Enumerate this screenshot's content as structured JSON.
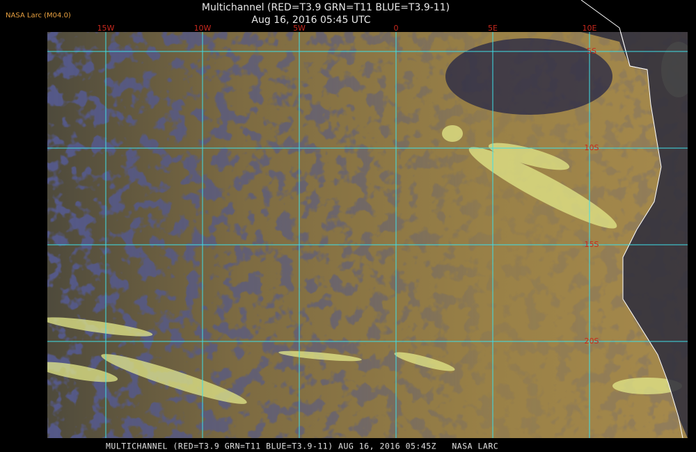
{
  "header": {
    "source": "NASA Larc (M04.0)",
    "title": "Multichannel (RED=T3.9 GRN=T11 BLUE=T3.9-11)",
    "subtitle": "Aug 16, 2016 05:45 UTC"
  },
  "map": {
    "longitude_labels": [
      "15W",
      "10W",
      "5W",
      "0",
      "5E",
      "10E"
    ],
    "latitude_labels": [
      "5S",
      "10S",
      "15S",
      "20S"
    ]
  },
  "footer": {
    "caption": "MULTICHANNEL (RED=T3.9 GRN=T11 BLUE=T3.9-11) AUG 16, 2016 05:45Z   NASA LARC"
  }
}
